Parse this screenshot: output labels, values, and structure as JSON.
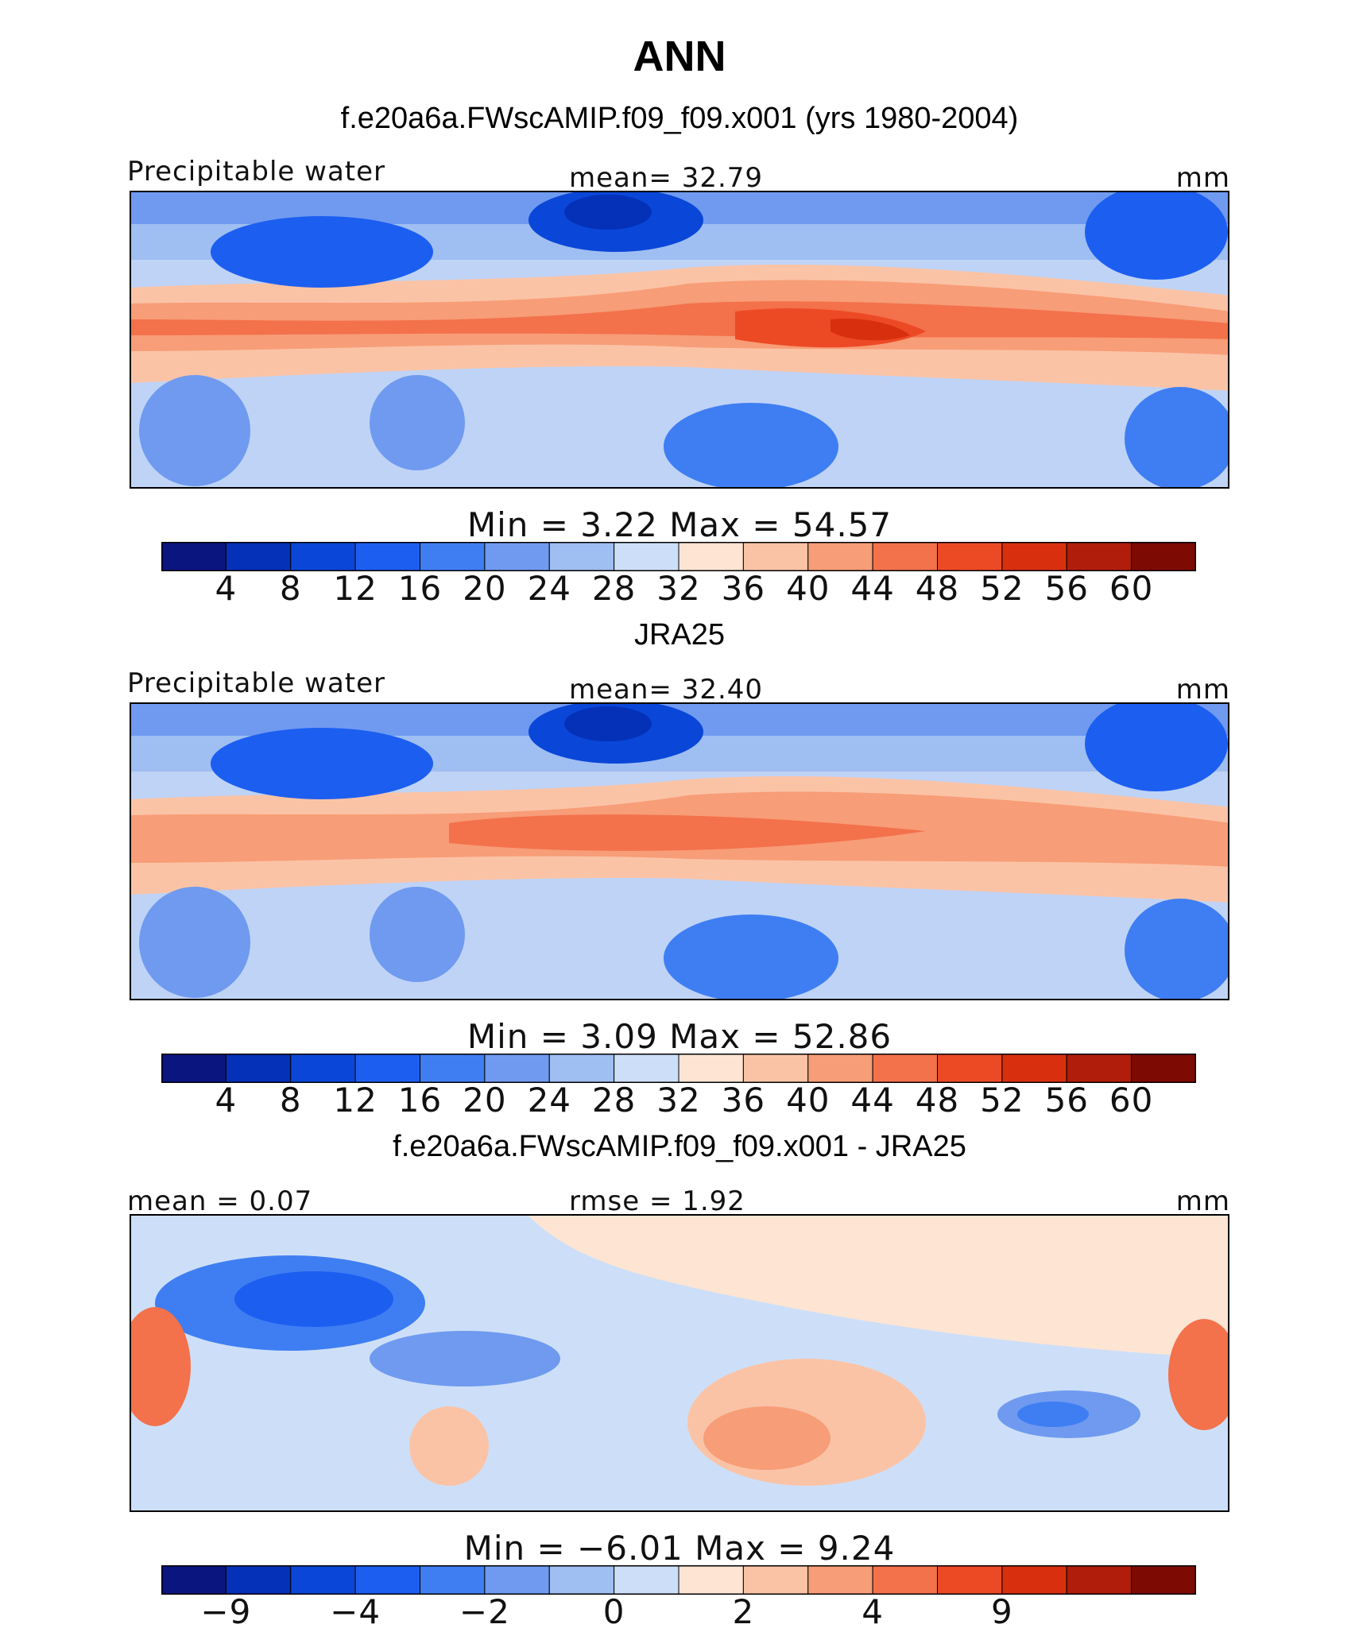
{
  "title": "ANN",
  "panels": [
    {
      "id": "model",
      "title": "f.e20a6a.FWscAMIP.f09_f09.x001 (yrs 1980-2004)",
      "left_label": "Precipitable water",
      "mid_label": "mean=   32.79",
      "units": "mm",
      "minmax": "Min  =    3.22  Max  =    54.57",
      "colorbar": {
        "colors": [
          "#0a1580",
          "#0431b8",
          "#0a47d8",
          "#1c5ef0",
          "#3f7ef2",
          "#6f9af0",
          "#9fbef2",
          "#cddff8",
          "#fde4d3",
          "#fbc3a6",
          "#f79d77",
          "#f3714b",
          "#ec4a25",
          "#d8300f",
          "#b01d0a",
          "#7e0a04"
        ],
        "ticks": [
          "4",
          "8",
          "12",
          "16",
          "20",
          "24",
          "28",
          "32",
          "36",
          "40",
          "44",
          "48",
          "52",
          "56",
          "60"
        ]
      }
    },
    {
      "id": "obs",
      "title": "JRA25",
      "left_label": "Precipitable water",
      "mid_label": "mean=   32.40",
      "units": "mm",
      "minmax": "Min  =    3.09  Max  =    52.86",
      "colorbar": {
        "colors": [
          "#0a1580",
          "#0431b8",
          "#0a47d8",
          "#1c5ef0",
          "#3f7ef2",
          "#6f9af0",
          "#9fbef2",
          "#cddff8",
          "#fde4d3",
          "#fbc3a6",
          "#f79d77",
          "#f3714b",
          "#ec4a25",
          "#d8300f",
          "#b01d0a",
          "#7e0a04"
        ],
        "ticks": [
          "4",
          "8",
          "12",
          "16",
          "20",
          "24",
          "28",
          "32",
          "36",
          "40",
          "44",
          "48",
          "52",
          "56",
          "60"
        ]
      }
    },
    {
      "id": "diff",
      "title": "f.e20a6a.FWscAMIP.f09_f09.x001 - JRA25",
      "left_label": "mean =    0.07",
      "mid_label": "rmse =    1.92",
      "units": "mm",
      "minmax": "Min  =   −6.01  Max  =     9.24",
      "colorbar": {
        "colors": [
          "#0a1580",
          "#0431b8",
          "#0a47d8",
          "#1c5ef0",
          "#3f7ef2",
          "#6f9af0",
          "#9fbef2",
          "#cddff8",
          "#fde4d3",
          "#fbc3a6",
          "#f79d77",
          "#f3714b",
          "#ec4a25",
          "#d8300f",
          "#b01d0a",
          "#7e0a04"
        ],
        "ticks": [
          "−9",
          "",
          "−4",
          "",
          "−2",
          "",
          "0",
          "",
          "2",
          "",
          "4",
          "",
          "9",
          "",
          ""
        ]
      }
    }
  ],
  "chart_data": [
    {
      "type": "heatmap",
      "title": "f.e20a6a.FWscAMIP.f09_f09.x001 (yrs 1980-2004)",
      "variable": "Precipitable water",
      "units": "mm",
      "mean": 32.79,
      "min": 3.22,
      "max": 54.57,
      "levels": [
        4,
        8,
        12,
        16,
        20,
        24,
        28,
        32,
        36,
        40,
        44,
        48,
        52,
        56,
        60
      ]
    },
    {
      "type": "heatmap",
      "title": "JRA25",
      "variable": "Precipitable water",
      "units": "mm",
      "mean": 32.4,
      "min": 3.09,
      "max": 52.86,
      "levels": [
        4,
        8,
        12,
        16,
        20,
        24,
        28,
        32,
        36,
        40,
        44,
        48,
        52,
        56,
        60
      ]
    },
    {
      "type": "heatmap",
      "title": "f.e20a6a.FWscAMIP.f09_f09.x001 - JRA25",
      "units": "mm",
      "mean": 0.07,
      "rmse": 1.92,
      "min": -6.01,
      "max": 9.24,
      "levels": [
        -9,
        -4,
        -2,
        0,
        2,
        4,
        9
      ]
    }
  ]
}
